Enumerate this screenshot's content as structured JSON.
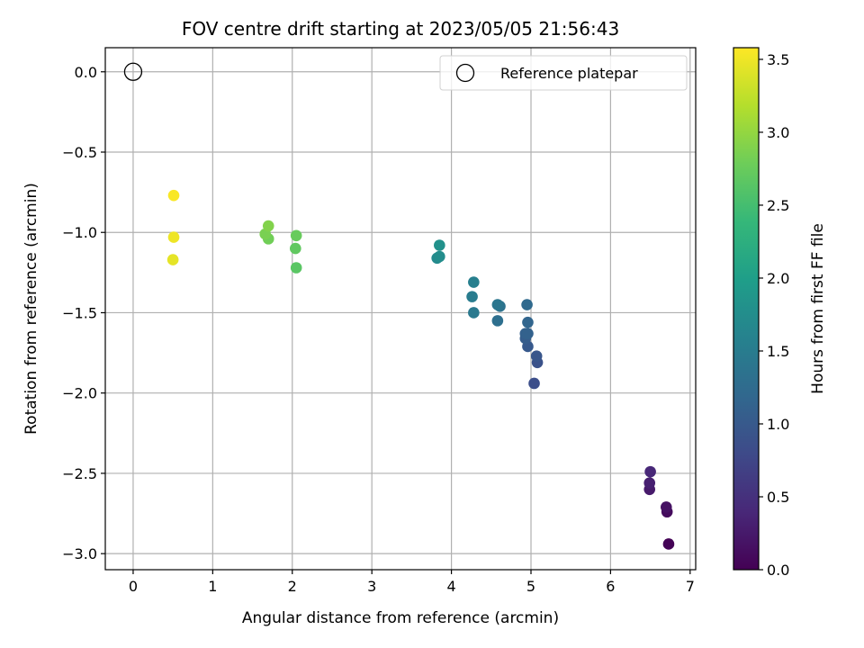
{
  "chart_data": {
    "type": "scatter",
    "title": "FOV centre drift starting at 2023/05/05 21:56:43",
    "xlabel": "Angular distance from reference (arcmin)",
    "ylabel": "Rotation from reference (arcmin)",
    "xlim": [
      -0.35,
      7.07
    ],
    "ylim": [
      -3.1,
      0.15
    ],
    "xticks": [
      0,
      1,
      2,
      3,
      4,
      5,
      6,
      7
    ],
    "yticks": [
      0.0,
      -0.5,
      -1.0,
      -1.5,
      -2.0,
      -2.5,
      -3.0
    ],
    "xtick_labels": [
      "0",
      "1",
      "2",
      "3",
      "4",
      "5",
      "6",
      "7"
    ],
    "ytick_labels": [
      "0.0",
      "−0.5",
      "−1.0",
      "−1.5",
      "−2.0",
      "−2.5",
      "−3.0"
    ],
    "grid": true,
    "colormap": "viridis",
    "colorbar": {
      "label": "Hours from first FF file",
      "range": [
        0.0,
        3.58
      ],
      "ticks": [
        0.0,
        0.5,
        1.0,
        1.5,
        2.0,
        2.5,
        3.0,
        3.5
      ],
      "tick_labels": [
        "0.0",
        "0.5",
        "1.0",
        "1.5",
        "2.0",
        "2.5",
        "3.0",
        "3.5"
      ]
    },
    "legend": {
      "placement": "top-right",
      "entries": [
        "Reference platepar"
      ]
    },
    "reference": {
      "name": "Reference platepar",
      "x": 0,
      "y": 0
    },
    "points": [
      {
        "x": 6.73,
        "y": -2.94,
        "c": 0.02
      },
      {
        "x": 6.71,
        "y": -2.74,
        "c": 0.1
      },
      {
        "x": 6.7,
        "y": -2.71,
        "c": 0.17
      },
      {
        "x": 6.49,
        "y": -2.6,
        "c": 0.25
      },
      {
        "x": 6.49,
        "y": -2.56,
        "c": 0.32
      },
      {
        "x": 6.5,
        "y": -2.49,
        "c": 0.4
      },
      {
        "x": 5.04,
        "y": -1.94,
        "c": 0.85
      },
      {
        "x": 5.08,
        "y": -1.81,
        "c": 0.9
      },
      {
        "x": 5.07,
        "y": -1.77,
        "c": 0.95
      },
      {
        "x": 4.96,
        "y": -1.71,
        "c": 1.0
      },
      {
        "x": 4.93,
        "y": -1.66,
        "c": 1.05
      },
      {
        "x": 4.93,
        "y": -1.63,
        "c": 1.1
      },
      {
        "x": 4.96,
        "y": -1.63,
        "c": 1.12
      },
      {
        "x": 4.96,
        "y": -1.56,
        "c": 1.17
      },
      {
        "x": 4.95,
        "y": -1.45,
        "c": 1.22
      },
      {
        "x": 4.58,
        "y": -1.55,
        "c": 1.3
      },
      {
        "x": 4.61,
        "y": -1.46,
        "c": 1.35
      },
      {
        "x": 4.58,
        "y": -1.45,
        "c": 1.4
      },
      {
        "x": 4.28,
        "y": -1.5,
        "c": 1.45
      },
      {
        "x": 4.26,
        "y": -1.4,
        "c": 1.5
      },
      {
        "x": 4.28,
        "y": -1.31,
        "c": 1.55
      },
      {
        "x": 3.82,
        "y": -1.16,
        "c": 1.7
      },
      {
        "x": 3.85,
        "y": -1.15,
        "c": 1.75
      },
      {
        "x": 3.85,
        "y": -1.08,
        "c": 1.8
      },
      {
        "x": 2.05,
        "y": -1.22,
        "c": 2.65
      },
      {
        "x": 2.04,
        "y": -1.1,
        "c": 2.7
      },
      {
        "x": 2.05,
        "y": -1.02,
        "c": 2.75
      },
      {
        "x": 1.7,
        "y": -1.04,
        "c": 2.8
      },
      {
        "x": 1.66,
        "y": -1.01,
        "c": 2.85
      },
      {
        "x": 1.7,
        "y": -0.96,
        "c": 2.9
      },
      {
        "x": 0.5,
        "y": -1.17,
        "c": 3.45
      },
      {
        "x": 0.51,
        "y": -1.03,
        "c": 3.5
      },
      {
        "x": 0.51,
        "y": -0.77,
        "c": 3.56
      }
    ]
  }
}
